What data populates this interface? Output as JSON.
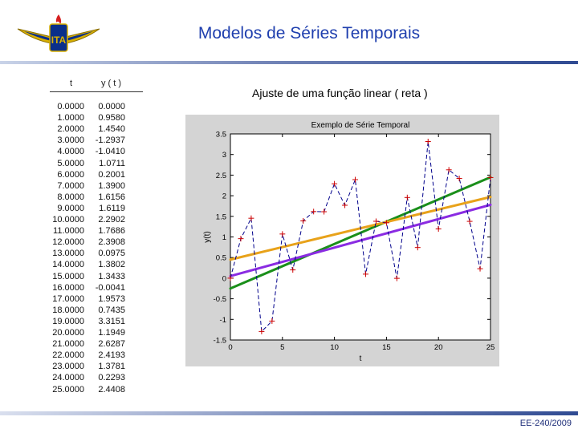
{
  "header": {
    "logo_text": "ITA",
    "title": "Modelos de Séries Temporais"
  },
  "table": {
    "col_t": "t",
    "col_y": "y ( t )",
    "rows": [
      [
        "0.0000",
        "0.0000"
      ],
      [
        "1.0000",
        "0.9580"
      ],
      [
        "2.0000",
        "1.4540"
      ],
      [
        "3.0000",
        "-1.2937"
      ],
      [
        "4.0000",
        "-1.0410"
      ],
      [
        "5.0000",
        "1.0711"
      ],
      [
        "6.0000",
        "0.2001"
      ],
      [
        "7.0000",
        "1.3900"
      ],
      [
        "8.0000",
        "1.6156"
      ],
      [
        "9.0000",
        "1.6119"
      ],
      [
        "10.0000",
        "2.2902"
      ],
      [
        "11.0000",
        "1.7686"
      ],
      [
        "12.0000",
        "2.3908"
      ],
      [
        "13.0000",
        "0.0975"
      ],
      [
        "14.0000",
        "1.3802"
      ],
      [
        "15.0000",
        "1.3433"
      ],
      [
        "16.0000",
        "-0.0041"
      ],
      [
        "17.0000",
        "1.9573"
      ],
      [
        "18.0000",
        "0.7435"
      ],
      [
        "19.0000",
        "3.3151"
      ],
      [
        "20.0000",
        "1.1949"
      ],
      [
        "21.0000",
        "2.6287"
      ],
      [
        "22.0000",
        "2.4193"
      ],
      [
        "23.0000",
        "1.3781"
      ],
      [
        "24.0000",
        "0.2293"
      ],
      [
        "25.0000",
        "2.4408"
      ]
    ]
  },
  "subtitle": "Ajuste de uma função linear ( reta )",
  "chart_data": {
    "type": "line",
    "title": "Exemplo de Série Temporal",
    "xlabel": "t",
    "ylabel": "y(t)",
    "xlim": [
      0,
      25
    ],
    "ylim": [
      -1.5,
      3.5
    ],
    "xticks": [
      "0",
      "5",
      "10",
      "15",
      "20",
      "25"
    ],
    "yticks": [
      "-1.5",
      "-1",
      "-0.5",
      "0",
      "0.5",
      "1",
      "1.5",
      "2",
      "2.5",
      "3",
      "3.5"
    ],
    "grid": false,
    "series": [
      {
        "name": "",
        "color": "#00008b",
        "style": "dashed",
        "marker": "+",
        "marker_color": "#cc0000",
        "x": [
          0,
          1,
          2,
          3,
          4,
          5,
          6,
          7,
          8,
          9,
          10,
          11,
          12,
          13,
          14,
          15,
          16,
          17,
          18,
          19,
          20,
          21,
          22,
          23,
          24,
          25
        ],
        "y": [
          0,
          0.958,
          1.454,
          -1.2937,
          -1.041,
          1.0711,
          0.2001,
          1.39,
          1.6156,
          1.6119,
          2.2902,
          1.7686,
          2.3908,
          0.0975,
          1.3802,
          1.3433,
          -0.0041,
          1.9573,
          0.7435,
          3.3151,
          1.1949,
          2.6287,
          2.4193,
          1.3781,
          0.2293,
          2.4408
        ]
      },
      {
        "name": "",
        "color": "#1a8f1a",
        "x": [
          0,
          25
        ],
        "y": [
          -0.25,
          2.45
        ]
      },
      {
        "name": "",
        "color": "#e8a21a",
        "x": [
          0,
          25
        ],
        "y": [
          0.45,
          1.97
        ]
      },
      {
        "name": "",
        "color": "#8a2be2",
        "x": [
          0,
          25
        ],
        "y": [
          0.05,
          1.78
        ]
      }
    ]
  },
  "footer": "EE-240/2009"
}
